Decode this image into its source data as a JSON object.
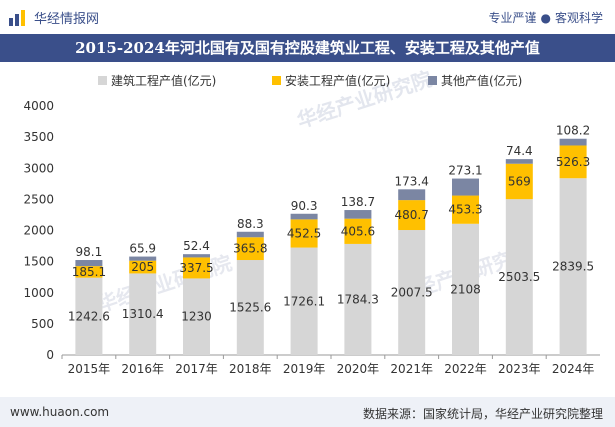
{
  "header": {
    "brand": "华经情报网",
    "slogan_left": "专业严谨",
    "slogan_sep": "●",
    "slogan_right": "客观科学"
  },
  "footer": {
    "url": "www.huaon.com",
    "source": "数据来源：国家统计局，华经产业研究院整理"
  },
  "watermark": "华经产业研究院",
  "colors": {
    "title_bg": "#3a4f8a",
    "construction": "#d6d6d6",
    "installation": "#ffc000",
    "other": "#7b86a3"
  },
  "chart_data": {
    "type": "bar",
    "stacked": true,
    "title": "2015-2024年河北国有及国有控股建筑业工程、安装工程及其他产值",
    "categories": [
      "2015年",
      "2016年",
      "2017年",
      "2018年",
      "2019年",
      "2020年",
      "2021年",
      "2022年",
      "2023年",
      "2024年"
    ],
    "series": [
      {
        "name": "建筑工程产值(亿元)",
        "values": [
          1242.6,
          1310.4,
          1230,
          1525.6,
          1726.1,
          1784.3,
          2007.5,
          2108,
          2503.5,
          2839.5
        ]
      },
      {
        "name": "安装工程产值(亿元)",
        "values": [
          185.1,
          205,
          337.5,
          365.8,
          452.5,
          405.6,
          480.7,
          453.3,
          569,
          526.3
        ]
      },
      {
        "name": "其他产值(亿元)",
        "values": [
          98.1,
          65.9,
          52.4,
          88.3,
          90.3,
          138.7,
          173.4,
          273.1,
          74.4,
          108.2
        ]
      }
    ],
    "ylim": [
      0,
      4000
    ],
    "yticks": [
      "0",
      "500",
      "1000",
      "1500",
      "2000",
      "2500",
      "3000",
      "3500",
      "4000"
    ],
    "xlabel": "",
    "ylabel": "",
    "legend": "top"
  }
}
